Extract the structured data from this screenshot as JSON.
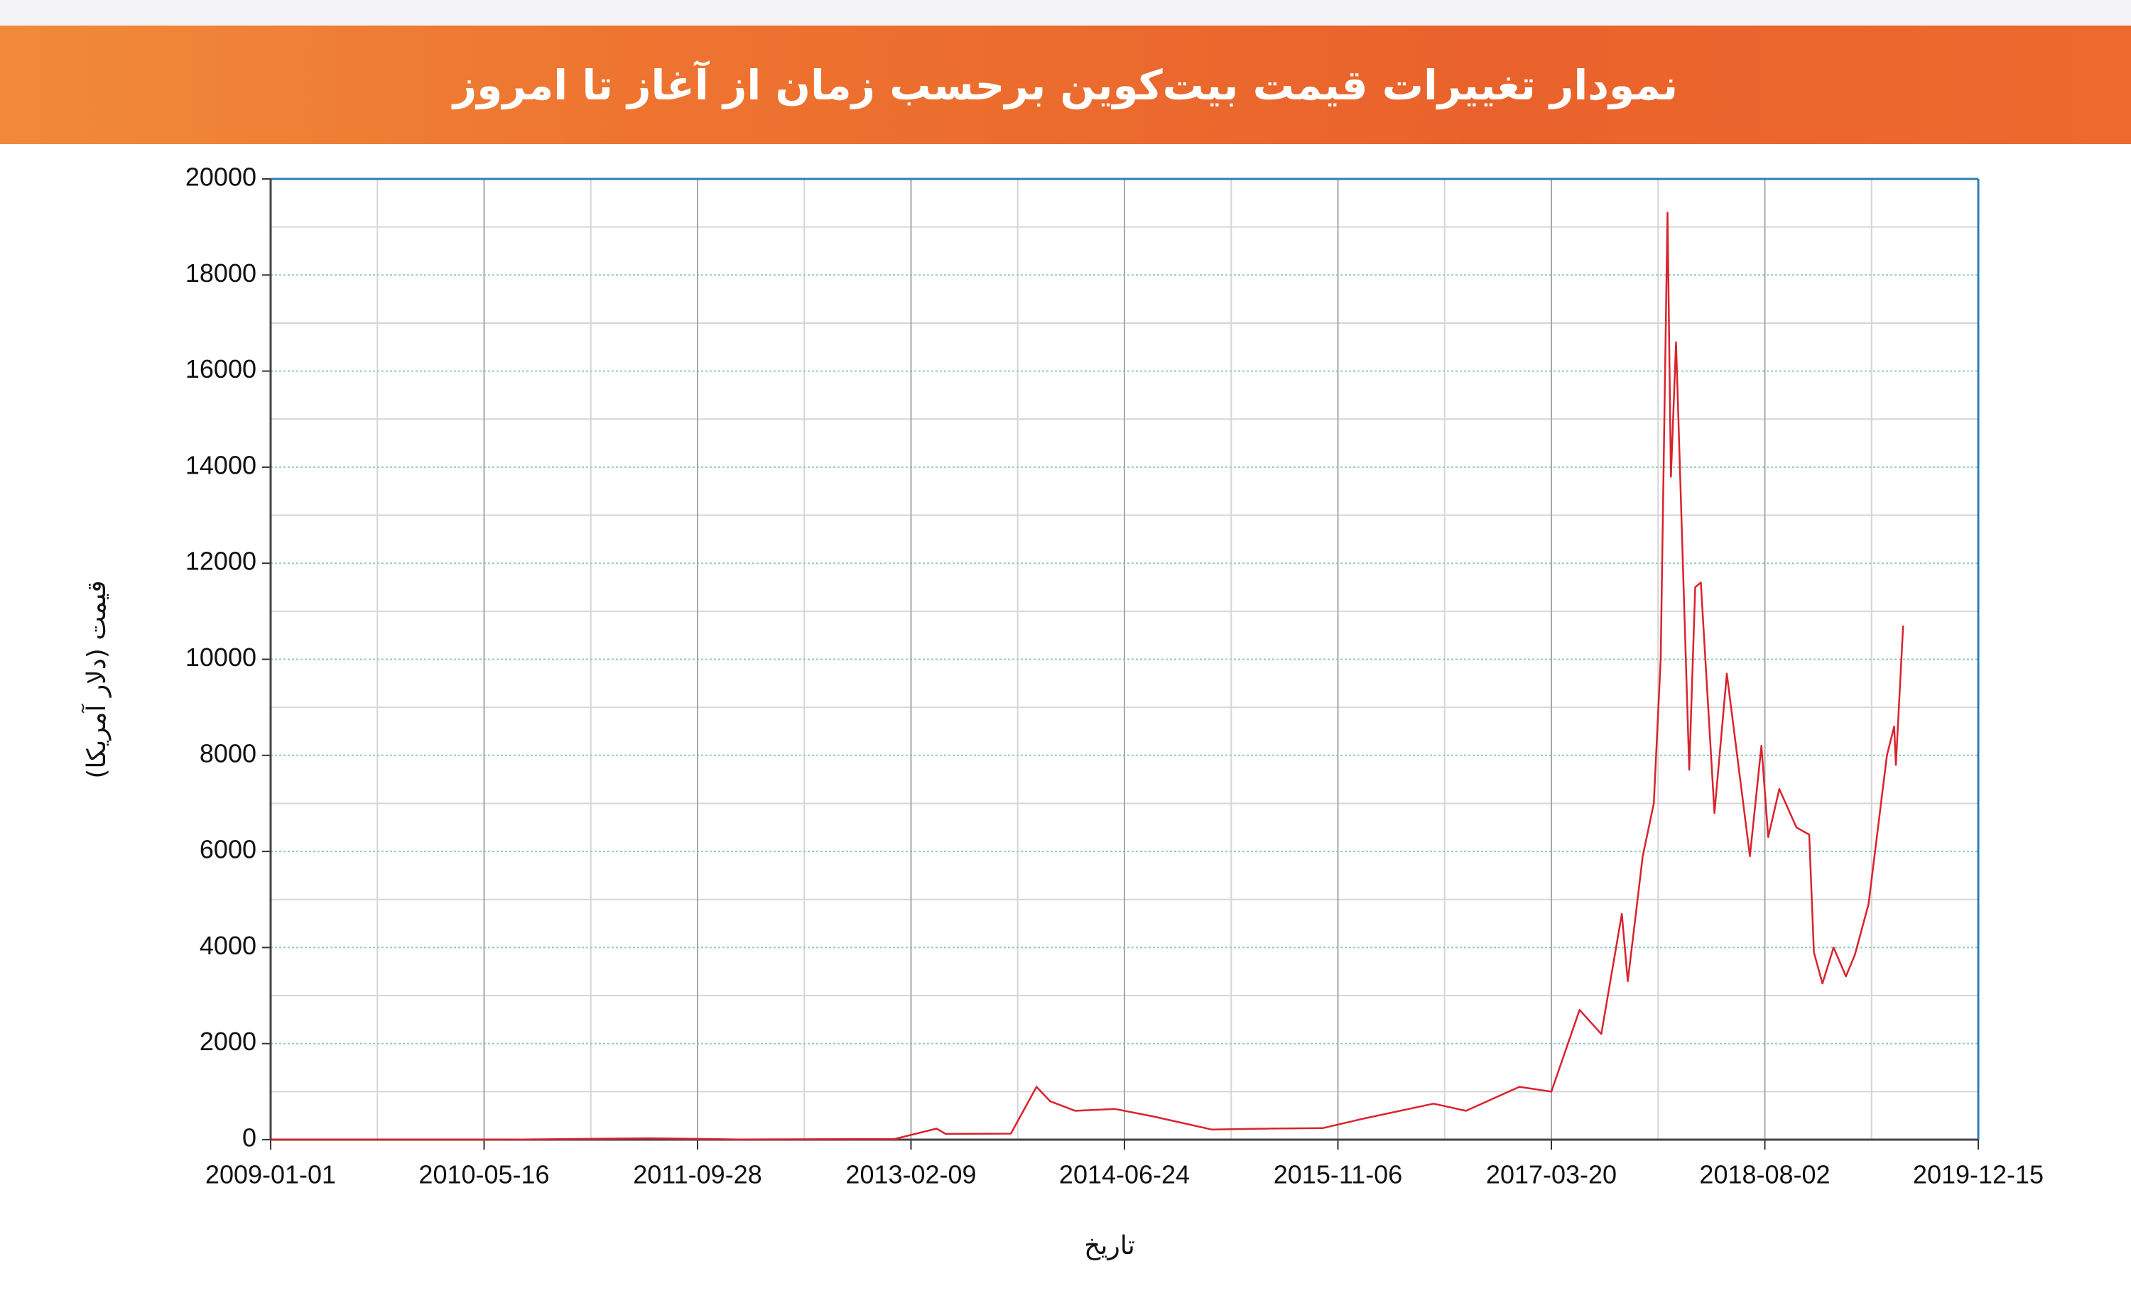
{
  "chart_data": {
    "type": "line",
    "title": "نمودار تغییرات قیمت بیت‌کوین برحسب زمان از آغاز تا امروز",
    "x_label": "تاریخ",
    "y_label": "قیمت (دلار آمریکا)",
    "color": "#d9232d",
    "grid": true,
    "xlim": [
      "2009-01-01",
      "2019-12-15"
    ],
    "xticks": [
      "2009-01-01",
      "2010-05-16",
      "2011-09-28",
      "2013-02-09",
      "2014-06-24",
      "2015-11-06",
      "2017-03-20",
      "2018-08-02",
      "2019-12-15"
    ],
    "ylim": [
      0,
      20000
    ],
    "yticks": [
      0,
      2000,
      4000,
      6000,
      8000,
      10000,
      12000,
      14000,
      16000,
      18000,
      20000
    ],
    "x": [
      "2009-01-01",
      "2010-07-01",
      "2011-06-08",
      "2012-01-01",
      "2013-01-01",
      "2013-04-10",
      "2013-05-01",
      "2013-10-01",
      "2013-11-30",
      "2014-01-01",
      "2014-03-01",
      "2014-06-01",
      "2014-09-01",
      "2015-01-15",
      "2015-06-01",
      "2015-10-01",
      "2016-01-01",
      "2016-06-17",
      "2016-09-01",
      "2017-01-04",
      "2017-03-20",
      "2017-05-25",
      "2017-07-15",
      "2017-09-01",
      "2017-09-15",
      "2017-10-20",
      "2017-11-15",
      "2017-12-01",
      "2017-12-17",
      "2017-12-25",
      "2018-01-06",
      "2018-02-06",
      "2018-02-20",
      "2018-03-05",
      "2018-04-06",
      "2018-05-05",
      "2018-06-28",
      "2018-07-25",
      "2018-08-10",
      "2018-09-05",
      "2018-10-15",
      "2018-11-14",
      "2018-11-25",
      "2018-12-15",
      "2019-01-10",
      "2019-02-08",
      "2019-03-01",
      "2019-04-02",
      "2019-05-15",
      "2019-06-01",
      "2019-06-05",
      "2019-06-22"
    ],
    "values": [
      0,
      0.07,
      30,
      5,
      13,
      230,
      120,
      125,
      1100,
      800,
      600,
      640,
      480,
      210,
      230,
      240,
      430,
      750,
      600,
      1100,
      1000,
      2700,
      2200,
      4700,
      3300,
      5900,
      7000,
      10000,
      19300,
      13800,
      16600,
      7700,
      11500,
      11600,
      6800,
      9700,
      5900,
      8200,
      6300,
      7300,
      6500,
      6350,
      3900,
      3250,
      4000,
      3400,
      3850,
      4900,
      8000,
      8600,
      7800,
      10700
    ]
  }
}
